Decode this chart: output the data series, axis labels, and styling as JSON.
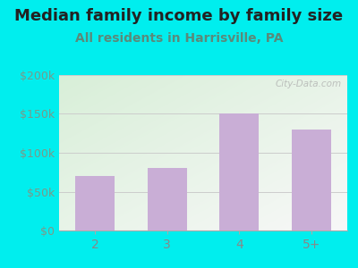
{
  "title": "Median family income by family size",
  "subtitle": "All residents in Harrisville, PA",
  "categories": [
    "2",
    "3",
    "4",
    "5+"
  ],
  "values": [
    70000,
    80000,
    150000,
    130000
  ],
  "bar_color": "#c9aed6",
  "ylim": [
    0,
    200000
  ],
  "yticks": [
    0,
    50000,
    100000,
    150000,
    200000
  ],
  "ytick_labels": [
    "$0",
    "$50k",
    "$100k",
    "$150k",
    "$200k"
  ],
  "title_fontsize": 13,
  "subtitle_fontsize": 10,
  "title_color": "#222222",
  "subtitle_color": "#5a8a7a",
  "tick_color": "#7a9a8a",
  "xtick_color": "#888888",
  "background_outer": "#00EEEE",
  "background_inner_top_left": "#d8efd8",
  "background_inner_bottom_right": "#f8f8f8",
  "watermark": "City-Data.com",
  "grid_color": "#cccccc",
  "bar_width": 0.55
}
